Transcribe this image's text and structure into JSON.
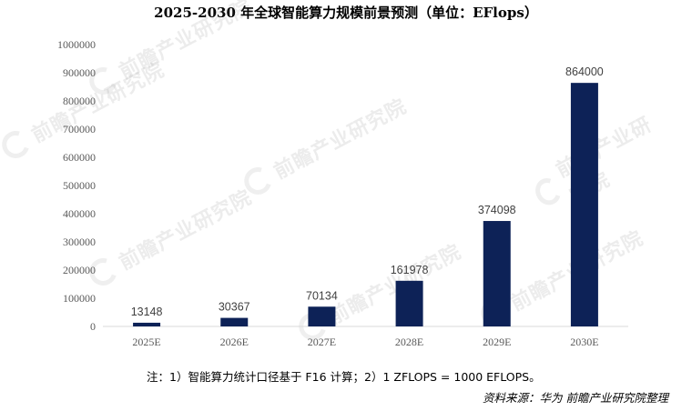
{
  "watermark_text": "前瞻产业研究院",
  "chart_data": {
    "type": "bar",
    "title": "2025-2030 年全球智能算力规模前景预测（单位：EFlops）",
    "categories": [
      "2025E",
      "2026E",
      "2027E",
      "2028E",
      "2029E",
      "2030E"
    ],
    "values": [
      13148,
      30367,
      70134,
      161978,
      374098,
      864000
    ],
    "data_labels": [
      "13148",
      "30367",
      "70134",
      "161978",
      "374098",
      "864000"
    ],
    "ylim": [
      0,
      1000000
    ],
    "yticks": [
      "0",
      "100000",
      "200000",
      "300000",
      "400000",
      "500000",
      "600000",
      "700000",
      "800000",
      "900000",
      "1000000"
    ],
    "bar_color": "#0d2257",
    "grid": false,
    "legend": "none"
  },
  "note": "注：1）智能算力统计口径基于 F16 计算；2）1 ZFLOPS = 1000 EFLOPS。",
  "source": "资料来源：华为 前瞻产业研究院整理"
}
